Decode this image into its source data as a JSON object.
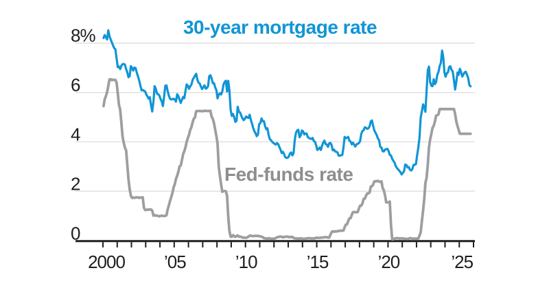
{
  "chart_data": {
    "type": "line",
    "title": "30-year mortgage rate",
    "inline_label": "Fed-funds rate",
    "legend_position": "inline-labels",
    "grid": "horizontal-only",
    "background": "#ffffff",
    "colors": {
      "mortgage_line": "#1095d6",
      "title_text": "#1095d6",
      "fedfunds_line": "#9c9ea0",
      "fedfunds_label": "#8c8e90",
      "axis_line": "#1f1f1f",
      "tick_text": "#1e1e1e",
      "gridline": "#dedede"
    },
    "y_axis": {
      "min": 0,
      "max": 8.8,
      "ticks": [
        {
          "value": 8,
          "label": "8%"
        },
        {
          "value": 6,
          "label": "6"
        },
        {
          "value": 4,
          "label": "4"
        },
        {
          "value": 2,
          "label": "2"
        },
        {
          "value": 0,
          "label": "0"
        }
      ]
    },
    "x_axis": {
      "min_year": 2000,
      "max_year": 2026,
      "minor_tick_every_years": 1,
      "labeled_ticks": [
        {
          "year": 2000,
          "label": "2000",
          "dx": 5
        },
        {
          "year": 2005,
          "label": "’05",
          "dx": 1
        },
        {
          "year": 2010,
          "label": "’10",
          "dx": 1
        },
        {
          "year": 2015,
          "label": "’15",
          "dx": 1
        },
        {
          "year": 2020,
          "label": "’20",
          "dx": 1
        },
        {
          "year": 2025,
          "label": "’25",
          "dx": 4
        }
      ]
    },
    "series": [
      {
        "name": "30-year mortgage rate",
        "color_key": "mortgage_line",
        "stroke_width": 3.2,
        "start_year": 2000,
        "frequency": "monthly",
        "values": [
          8.21,
          8.33,
          8.24,
          8.15,
          8.52,
          8.29,
          8.15,
          8.03,
          7.91,
          7.8,
          7.75,
          7.38,
          7.03,
          7.05,
          6.95,
          7.08,
          7.15,
          7.16,
          7.13,
          6.95,
          6.82,
          6.62,
          6.66,
          7.07,
          7.0,
          6.89,
          7.01,
          6.99,
          6.81,
          6.65,
          6.49,
          6.29,
          6.09,
          6.11,
          6.07,
          6.05,
          5.92,
          5.84,
          5.75,
          5.81,
          5.48,
          5.23,
          5.63,
          6.26,
          6.15,
          5.95,
          5.93,
          5.88,
          5.74,
          5.64,
          5.45,
          5.83,
          6.27,
          6.29,
          6.06,
          5.87,
          5.75,
          5.72,
          5.73,
          5.75,
          5.71,
          5.63,
          5.93,
          5.86,
          5.72,
          5.58,
          5.7,
          5.82,
          5.77,
          6.07,
          6.33,
          6.27,
          6.15,
          6.25,
          6.32,
          6.51,
          6.6,
          6.68,
          6.76,
          6.52,
          6.4,
          6.36,
          6.24,
          6.14,
          6.22,
          6.29,
          6.16,
          6.18,
          6.26,
          6.66,
          6.7,
          6.57,
          6.38,
          6.38,
          6.21,
          6.1,
          5.76,
          5.92,
          5.97,
          5.92,
          6.04,
          6.32,
          6.43,
          6.48,
          6.04,
          6.47,
          6.09,
          5.29,
          5.05,
          5.13,
          5.0,
          4.81,
          4.86,
          5.42,
          5.22,
          5.19,
          5.06,
          4.95,
          4.88,
          4.93,
          5.03,
          4.99,
          4.97,
          5.1,
          4.89,
          4.74,
          4.56,
          4.43,
          4.35,
          4.23,
          4.3,
          4.71,
          4.76,
          4.95,
          4.84,
          4.84,
          4.64,
          4.51,
          4.55,
          4.27,
          4.11,
          4.07,
          4.0,
          3.96,
          3.92,
          3.89,
          3.95,
          3.91,
          3.8,
          3.68,
          3.55,
          3.6,
          3.5,
          3.38,
          3.35,
          3.35,
          3.41,
          3.53,
          3.57,
          3.45,
          3.54,
          4.07,
          4.37,
          4.46,
          4.49,
          4.19,
          4.26,
          4.46,
          4.43,
          4.3,
          4.34,
          4.34,
          4.19,
          4.16,
          4.13,
          4.12,
          4.16,
          4.04,
          4.0,
          3.86,
          3.67,
          3.71,
          3.77,
          3.67,
          3.84,
          3.98,
          4.05,
          3.91,
          3.89,
          3.8,
          3.94,
          3.96,
          3.87,
          3.66,
          3.69,
          3.61,
          3.6,
          3.57,
          3.44,
          3.44,
          3.46,
          3.47,
          3.77,
          4.2,
          4.15,
          4.17,
          4.2,
          4.05,
          4.01,
          3.9,
          3.97,
          3.88,
          3.81,
          3.9,
          3.92,
          3.95,
          4.03,
          4.33,
          4.44,
          4.47,
          4.59,
          4.57,
          4.53,
          4.55,
          4.63,
          4.83,
          4.87,
          4.64,
          4.46,
          4.37,
          4.27,
          4.14,
          4.07,
          3.8,
          3.77,
          3.62,
          3.61,
          3.69,
          3.7,
          3.72,
          3.62,
          3.47,
          3.45,
          3.31,
          3.23,
          3.16,
          3.02,
          2.94,
          2.89,
          2.83,
          2.77,
          2.68,
          2.74,
          2.81,
          3.08,
          3.06,
          2.96,
          2.98,
          2.87,
          2.84,
          2.9,
          3.07,
          3.07,
          3.1,
          3.45,
          3.76,
          4.17,
          4.98,
          5.23,
          5.52,
          5.41,
          5.22,
          6.11,
          6.9,
          7.05,
          6.42,
          6.27,
          6.26,
          6.54,
          6.34,
          6.43,
          6.71,
          6.84,
          7.07,
          7.2,
          7.7,
          7.44,
          6.82,
          6.64,
          6.78,
          6.82,
          7.04,
          7.06,
          6.92,
          6.85,
          6.5,
          6.12,
          6.43,
          6.81,
          6.72,
          6.96,
          6.84,
          6.65,
          6.73,
          6.82,
          6.84,
          6.72,
          6.59,
          6.3,
          6.25
        ]
      },
      {
        "name": "Fed-funds rate",
        "color_key": "fedfunds_line",
        "stroke_width": 3.8,
        "start_year": 2000,
        "frequency": "monthly",
        "values": [
          5.45,
          5.73,
          5.85,
          6.02,
          6.27,
          6.53,
          6.54,
          6.5,
          6.52,
          6.51,
          6.51,
          6.4,
          5.98,
          5.49,
          5.31,
          4.8,
          4.21,
          3.97,
          3.77,
          3.65,
          3.07,
          2.49,
          2.09,
          1.82,
          1.73,
          1.74,
          1.73,
          1.75,
          1.75,
          1.75,
          1.73,
          1.74,
          1.75,
          1.75,
          1.34,
          1.24,
          1.24,
          1.26,
          1.25,
          1.26,
          1.26,
          1.22,
          1.01,
          1.03,
          1.01,
          1.01,
          1.0,
          0.98,
          1.0,
          1.01,
          1.0,
          1.0,
          1.0,
          1.03,
          1.26,
          1.43,
          1.61,
          1.76,
          1.93,
          2.16,
          2.28,
          2.5,
          2.63,
          2.79,
          3.0,
          3.04,
          3.26,
          3.5,
          3.62,
          3.78,
          4.0,
          4.16,
          4.29,
          4.49,
          4.59,
          4.79,
          4.94,
          4.99,
          5.24,
          5.25,
          5.25,
          5.25,
          5.25,
          5.24,
          5.25,
          5.26,
          5.26,
          5.25,
          5.25,
          5.25,
          5.26,
          5.02,
          4.94,
          4.76,
          4.49,
          4.24,
          3.94,
          2.98,
          2.61,
          2.28,
          1.98,
          2.0,
          2.01,
          2.0,
          1.81,
          0.97,
          0.39,
          0.16,
          0.15,
          0.22,
          0.18,
          0.15,
          0.18,
          0.21,
          0.16,
          0.16,
          0.15,
          0.12,
          0.12,
          0.12,
          0.11,
          0.13,
          0.16,
          0.2,
          0.2,
          0.18,
          0.18,
          0.19,
          0.19,
          0.19,
          0.19,
          0.18,
          0.17,
          0.16,
          0.14,
          0.1,
          0.09,
          0.09,
          0.07,
          0.1,
          0.08,
          0.07,
          0.08,
          0.07,
          0.08,
          0.1,
          0.13,
          0.14,
          0.16,
          0.16,
          0.16,
          0.13,
          0.14,
          0.16,
          0.16,
          0.16,
          0.14,
          0.15,
          0.14,
          0.15,
          0.11,
          0.09,
          0.09,
          0.08,
          0.08,
          0.09,
          0.08,
          0.09,
          0.07,
          0.07,
          0.08,
          0.09,
          0.09,
          0.1,
          0.09,
          0.09,
          0.09,
          0.09,
          0.09,
          0.12,
          0.11,
          0.11,
          0.11,
          0.12,
          0.12,
          0.13,
          0.13,
          0.14,
          0.14,
          0.12,
          0.12,
          0.24,
          0.34,
          0.38,
          0.36,
          0.37,
          0.37,
          0.38,
          0.39,
          0.4,
          0.4,
          0.4,
          0.41,
          0.54,
          0.65,
          0.66,
          0.79,
          0.9,
          0.91,
          1.04,
          1.15,
          1.16,
          1.15,
          1.15,
          1.16,
          1.3,
          1.41,
          1.42,
          1.51,
          1.69,
          1.7,
          1.82,
          1.91,
          1.91,
          1.95,
          2.19,
          2.2,
          2.27,
          2.4,
          2.4,
          2.41,
          2.42,
          2.39,
          2.38,
          2.4,
          2.13,
          2.04,
          1.83,
          1.55,
          1.55,
          1.55,
          1.58,
          0.65,
          0.05,
          0.05,
          0.08,
          0.09,
          0.1,
          0.09,
          0.09,
          0.09,
          0.09,
          0.09,
          0.08,
          0.07,
          0.07,
          0.06,
          0.08,
          0.1,
          0.09,
          0.08,
          0.08,
          0.08,
          0.08,
          0.08,
          0.08,
          0.2,
          0.33,
          0.77,
          1.21,
          1.68,
          2.33,
          2.56,
          3.08,
          3.78,
          4.1,
          4.33,
          4.57,
          4.65,
          4.83,
          5.06,
          5.08,
          5.12,
          5.33,
          5.33,
          5.33,
          5.33,
          5.33,
          5.33,
          5.33,
          5.33,
          5.33,
          5.33,
          5.33,
          5.33,
          5.33,
          5.13,
          4.83,
          4.64,
          4.48,
          4.33,
          4.33,
          4.33,
          4.33,
          4.33,
          4.33,
          4.33,
          4.33,
          4.33,
          4.33
        ]
      }
    ]
  }
}
